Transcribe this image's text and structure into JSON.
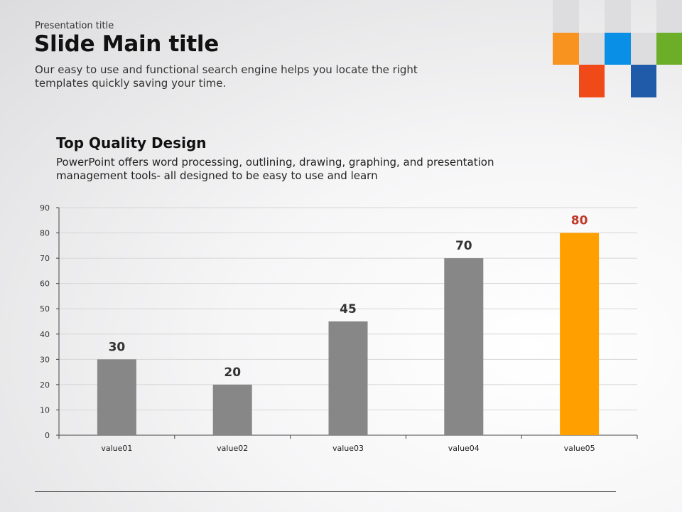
{
  "slide": {
    "presentation_title": "Presentation title",
    "main_title": "Slide Main title",
    "subtitle": "Our easy to use and functional search engine helps you locate the right templates quickly saving your time.",
    "section_title": "Top Quality Design",
    "section_description": "PowerPoint offers word processing, outlining, drawing, graphing, and presentation management tools- all designed to be easy to use and learn"
  },
  "colors": {
    "bar_default": "#878787",
    "bar_highlight": "#FFA000",
    "highlight_label": "#C0392B",
    "deco_orange": "#F7931E",
    "deco_blue": "#0A8FE6",
    "deco_green": "#6DAE29",
    "deco_red": "#EF4A18",
    "deco_darkblue": "#1F5BA8",
    "deco_gray": "#DDDDE0"
  },
  "chart_data": {
    "type": "bar",
    "categories": [
      "value01",
      "value02",
      "value03",
      "value04",
      "value05"
    ],
    "values": [
      30,
      20,
      45,
      70,
      80
    ],
    "highlight_index": 4,
    "ylim": [
      0,
      90
    ],
    "yticks": [
      0,
      10,
      20,
      30,
      40,
      50,
      60,
      70,
      80,
      90
    ],
    "grid": true,
    "data_labels": true,
    "title": "",
    "xlabel": "",
    "ylabel": ""
  }
}
